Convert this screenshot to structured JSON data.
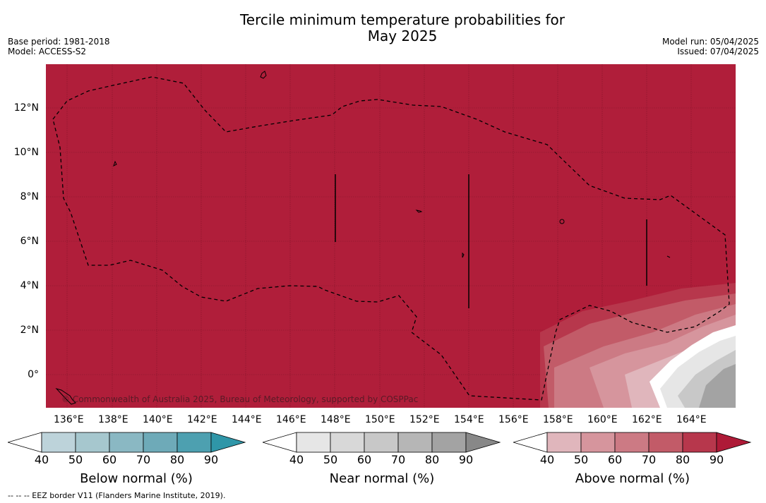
{
  "title": {
    "line1": "Tercile minimum temperature probabilities for",
    "line2": "May 2025"
  },
  "meta": {
    "base_period": "Base period: 1981-2018",
    "model": "Model: ACCESS-S2",
    "model_run": "Model run: 05/04/2025",
    "issued": "Issued: 07/04/2025"
  },
  "map": {
    "background_color": "#b01e3a",
    "lat_labels": [
      "12°N",
      "10°N",
      "8°N",
      "6°N",
      "4°N",
      "2°N",
      "0°"
    ],
    "lon_labels": [
      "136°E",
      "138°E",
      "140°E",
      "142°E",
      "144°E",
      "146°E",
      "148°E",
      "150°E",
      "152°E",
      "154°E",
      "156°E",
      "158°E",
      "160°E",
      "162°E",
      "164°E"
    ],
    "copyright": "© Commonwealth of Australia 2025, Bureau of Meteorology, supported by COSPPac"
  },
  "colorbars": [
    {
      "title": "Below normal (%)",
      "ticks": [
        "40",
        "50",
        "60",
        "70",
        "80",
        "90"
      ],
      "colors": [
        "#bdd3da",
        "#a6c7ce",
        "#8ab8c3",
        "#6eaab8",
        "#4da0b0",
        "#2f96a8"
      ]
    },
    {
      "title": "Near normal (%)",
      "ticks": [
        "40",
        "50",
        "60",
        "70",
        "80",
        "90"
      ],
      "colors": [
        "#e6e6e6",
        "#d8d8d8",
        "#c8c8c8",
        "#b6b6b6",
        "#a3a3a3",
        "#888888"
      ]
    },
    {
      "title": "Above normal (%)",
      "ticks": [
        "40",
        "50",
        "60",
        "70",
        "80",
        "90"
      ],
      "colors": [
        "#e0b6bc",
        "#d6959d",
        "#cc7a84",
        "#c25b68",
        "#b7374c",
        "#ae1a37"
      ]
    }
  ],
  "footnote": "--  --  -- EEZ border V11 (Flanders Marine Institute, 2019)."
}
